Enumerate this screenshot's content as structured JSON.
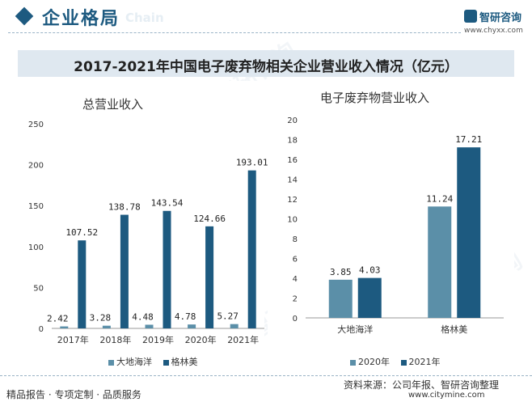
{
  "header": {
    "title": "企业格局",
    "subtitle": "Chain"
  },
  "brand": {
    "name": "智研咨询",
    "url": "www.chyxx.com"
  },
  "figure_title": "2017-2021年中国电子废弃物相关企业营业收入情况（亿元）",
  "watermark_text": "智研咨询",
  "colors": {
    "dadi": "#5b8fa8",
    "gelinmei": "#1d5a80",
    "header": "#1d5a80",
    "band": "#dfe8f0"
  },
  "footer": {
    "left_text": "精品报告 · 专项定制 · 品质服务",
    "source": "资料来源：公司年报、智研咨询整理",
    "site": "www.citymine.com"
  },
  "chart_data": [
    {
      "type": "bar",
      "title": "总营业收入",
      "categories": [
        "2017年",
        "2018年",
        "2019年",
        "2020年",
        "2021年"
      ],
      "series": [
        {
          "name": "大地海洋",
          "values": [
            2.42,
            3.28,
            4.48,
            4.78,
            5.27
          ],
          "labels": [
            "2.42",
            "3.28",
            "4.48",
            "4.78",
            "5.27"
          ]
        },
        {
          "name": "格林美",
          "values": [
            107.52,
            138.78,
            143.54,
            124.66,
            193.01
          ],
          "labels": [
            "107.52",
            "138.78",
            "143.54",
            "124.66",
            "193.01"
          ]
        }
      ],
      "ylim": [
        0,
        250
      ],
      "yticks": [
        "0",
        "50",
        "100",
        "150",
        "200",
        "250"
      ],
      "xlabel": "",
      "ylabel": "",
      "grid": false,
      "legend": "bottom"
    },
    {
      "type": "bar",
      "title": "电子废弃物营业收入",
      "categories": [
        "大地海洋",
        "格林美"
      ],
      "series": [
        {
          "name": "2020年",
          "values": [
            3.85,
            11.24
          ],
          "labels": [
            "3.85",
            "11.24"
          ]
        },
        {
          "name": "2021年",
          "values": [
            4.03,
            17.21
          ],
          "labels": [
            "4.03",
            "17.21"
          ]
        }
      ],
      "ylim": [
        0,
        20
      ],
      "yticks": [
        "0",
        "2",
        "4",
        "6",
        "8",
        "10",
        "12",
        "14",
        "16",
        "18",
        "20"
      ],
      "xlabel": "",
      "ylabel": "",
      "grid": false,
      "legend": "bottom"
    }
  ]
}
